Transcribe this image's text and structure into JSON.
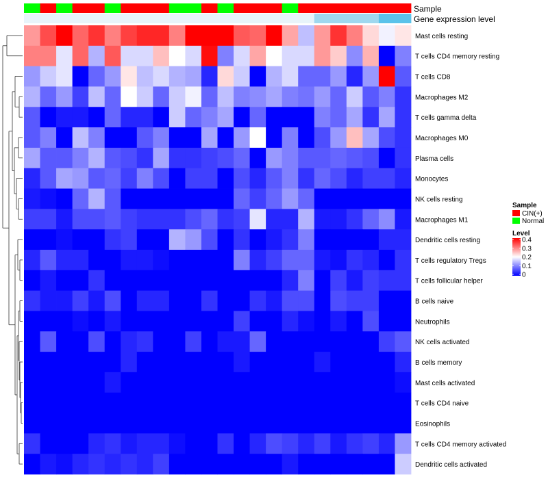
{
  "chart_data": {
    "type": "heatmap",
    "title": "",
    "annotation_tracks": [
      {
        "name": "Sample",
        "values": [
          "Normal",
          "CIN(+)",
          "Normal",
          "CIN(+)",
          "CIN(+)",
          "Normal",
          "CIN(+)",
          "CIN(+)",
          "CIN(+)",
          "Normal",
          "Normal",
          "CIN(+)",
          "Normal",
          "CIN(+)",
          "CIN(+)",
          "CIN(+)",
          "Normal",
          "CIN(+)",
          "CIN(+)",
          "CIN(+)",
          "CIN(+)",
          "CIN(+)",
          "CIN(+)",
          "CIN(+)"
        ]
      },
      {
        "name": "Gene expression level",
        "values": [
          "low",
          "low",
          "low",
          "low",
          "low",
          "low",
          "low",
          "low",
          "low",
          "low",
          "low",
          "low",
          "low",
          "low",
          "low",
          "low",
          "low",
          "low",
          "mid",
          "mid",
          "mid",
          "mid",
          "high",
          "high"
        ]
      }
    ],
    "rows": [
      "Mast cells resting",
      "T cells CD4 memory resting",
      "T cells CD8",
      "Macrophages M2",
      "T cells gamma delta",
      "Macrophages M0",
      "Plasma cells",
      "Monocytes",
      "NK cells resting",
      "Macrophages M1",
      "Dendritic cells resting",
      "T cells regulatory  Tregs",
      "T cells follicular helper",
      "B cells naive",
      "Neutrophils",
      "NK cells activated",
      "B cells memory",
      "Mast cells activated",
      "T cells CD4 naive",
      "Eosinophils",
      "T cells CD4 memory activated",
      "Dendritic cells activated"
    ],
    "values": [
      [
        0.28,
        0.34,
        0.4,
        0.32,
        0.36,
        0.3,
        0.35,
        0.37,
        0.37,
        0.3,
        0.4,
        0.4,
        0.4,
        0.33,
        0.32,
        0.4,
        0.27,
        0.15,
        0.28,
        0.36,
        0.3,
        0.23,
        0.19,
        0.22
      ],
      [
        0.3,
        0.3,
        0.18,
        0.32,
        0.14,
        0.33,
        0.17,
        0.17,
        0.25,
        0.2,
        0.17,
        0.39,
        0.1,
        0.17,
        0.27,
        0.2,
        0.17,
        0.17,
        0.28,
        0.24,
        0.11,
        0.26,
        0.0,
        0.1
      ],
      [
        0.12,
        0.16,
        0.18,
        0.0,
        0.08,
        0.12,
        0.22,
        0.15,
        0.17,
        0.14,
        0.13,
        0.03,
        0.23,
        0.16,
        0.0,
        0.14,
        0.17,
        0.08,
        0.08,
        0.12,
        0.03,
        0.12,
        0.4,
        0.07
      ],
      [
        0.14,
        0.08,
        0.12,
        0.05,
        0.15,
        0.08,
        0.2,
        0.16,
        0.08,
        0.16,
        0.19,
        0.08,
        0.15,
        0.1,
        0.11,
        0.13,
        0.1,
        0.09,
        0.12,
        0.08,
        0.16,
        0.07,
        0.1,
        0.04
      ],
      [
        0.07,
        0.0,
        0.02,
        0.02,
        0.0,
        0.08,
        0.03,
        0.03,
        0.0,
        0.16,
        0.08,
        0.1,
        0.13,
        0.0,
        0.08,
        0.0,
        0.0,
        0.0,
        0.1,
        0.08,
        0.13,
        0.04,
        0.13,
        0.04
      ],
      [
        0.07,
        0.1,
        0.0,
        0.15,
        0.1,
        0.0,
        0.0,
        0.07,
        0.1,
        0.0,
        0.0,
        0.13,
        0.0,
        0.12,
        0.2,
        0.0,
        0.1,
        0.0,
        0.06,
        0.12,
        0.25,
        0.13,
        0.06,
        0.04
      ],
      [
        0.13,
        0.07,
        0.07,
        0.1,
        0.14,
        0.07,
        0.06,
        0.04,
        0.13,
        0.04,
        0.04,
        0.05,
        0.06,
        0.08,
        0.0,
        0.12,
        0.1,
        0.07,
        0.07,
        0.08,
        0.07,
        0.06,
        0.0,
        0.04
      ],
      [
        0.03,
        0.07,
        0.13,
        0.12,
        0.07,
        0.08,
        0.05,
        0.1,
        0.06,
        0.0,
        0.05,
        0.05,
        0.0,
        0.06,
        0.03,
        0.07,
        0.1,
        0.04,
        0.08,
        0.06,
        0.03,
        0.05,
        0.05,
        0.03
      ],
      [
        0.02,
        0.01,
        0.0,
        0.08,
        0.14,
        0.07,
        0.0,
        0.0,
        0.0,
        0.0,
        0.0,
        0.0,
        0.0,
        0.08,
        0.05,
        0.08,
        0.12,
        0.08,
        0.0,
        0.0,
        0.0,
        0.0,
        0.0,
        0.0
      ],
      [
        0.05,
        0.05,
        0.02,
        0.06,
        0.06,
        0.07,
        0.05,
        0.04,
        0.04,
        0.04,
        0.06,
        0.08,
        0.04,
        0.05,
        0.18,
        0.03,
        0.03,
        0.14,
        0.02,
        0.02,
        0.04,
        0.08,
        0.11,
        0.02
      ],
      [
        0.0,
        0.0,
        0.01,
        0.0,
        0.0,
        0.04,
        0.05,
        0.0,
        0.0,
        0.14,
        0.12,
        0.06,
        0.0,
        0.04,
        0.0,
        0.02,
        0.04,
        0.1,
        0.0,
        0.0,
        0.0,
        0.0,
        0.03,
        0.03
      ],
      [
        0.03,
        0.07,
        0.03,
        0.03,
        0.0,
        0.0,
        0.02,
        0.02,
        0.01,
        0.0,
        0.0,
        0.0,
        0.0,
        0.1,
        0.03,
        0.05,
        0.08,
        0.08,
        0.02,
        0.01,
        0.04,
        0.03,
        0.0,
        0.04
      ],
      [
        0.0,
        0.02,
        0.0,
        0.0,
        0.04,
        0.0,
        0.0,
        0.0,
        0.0,
        0.0,
        0.0,
        0.0,
        0.0,
        0.0,
        0.0,
        0.0,
        0.03,
        0.1,
        0.0,
        0.05,
        0.02,
        0.05,
        0.04,
        0.04
      ],
      [
        0.04,
        0.02,
        0.02,
        0.05,
        0.02,
        0.06,
        0.0,
        0.03,
        0.03,
        0.0,
        0.0,
        0.04,
        0.0,
        0.0,
        0.04,
        0.02,
        0.06,
        0.06,
        0.0,
        0.06,
        0.05,
        0.05,
        0.0,
        0.0
      ],
      [
        0.0,
        0.0,
        0.0,
        0.01,
        0.0,
        0.02,
        0.0,
        0.0,
        0.0,
        0.0,
        0.0,
        0.0,
        0.0,
        0.05,
        0.0,
        0.0,
        0.03,
        0.01,
        0.0,
        0.02,
        0.0,
        0.06,
        0.0,
        0.0
      ],
      [
        0.0,
        0.07,
        0.0,
        0.0,
        0.06,
        0.0,
        0.03,
        0.04,
        0.0,
        0.0,
        0.05,
        0.0,
        0.02,
        0.02,
        0.08,
        0.0,
        0.0,
        0.0,
        0.0,
        0.0,
        0.0,
        0.0,
        0.05,
        0.07
      ],
      [
        0.0,
        0.0,
        0.0,
        0.0,
        0.0,
        0.0,
        0.03,
        0.0,
        0.0,
        0.0,
        0.0,
        0.0,
        0.0,
        0.02,
        0.0,
        0.0,
        0.0,
        0.0,
        0.02,
        0.0,
        0.0,
        0.0,
        0.0,
        0.03
      ],
      [
        0.0,
        0.0,
        0.0,
        0.0,
        0.0,
        0.02,
        0.0,
        0.0,
        0.0,
        0.0,
        0.0,
        0.0,
        0.0,
        0.0,
        0.0,
        0.0,
        0.0,
        0.0,
        0.0,
        0.0,
        0.0,
        0.0,
        0.0,
        0.01
      ],
      [
        0.0,
        0.0,
        0.0,
        0.0,
        0.0,
        0.0,
        0.0,
        0.0,
        0.0,
        0.0,
        0.0,
        0.0,
        0.0,
        0.0,
        0.0,
        0.0,
        0.0,
        0.0,
        0.0,
        0.0,
        0.0,
        0.0,
        0.0,
        0.0
      ],
      [
        0.0,
        0.0,
        0.0,
        0.0,
        0.0,
        0.0,
        0.0,
        0.0,
        0.0,
        0.0,
        0.0,
        0.0,
        0.0,
        0.0,
        0.0,
        0.0,
        0.0,
        0.0,
        0.0,
        0.0,
        0.0,
        0.0,
        0.0,
        0.0
      ],
      [
        0.04,
        0.0,
        0.0,
        0.0,
        0.03,
        0.04,
        0.02,
        0.03,
        0.03,
        0.01,
        0.0,
        0.0,
        0.04,
        0.0,
        0.03,
        0.06,
        0.05,
        0.03,
        0.05,
        0.02,
        0.04,
        0.05,
        0.03,
        0.12
      ],
      [
        0.0,
        0.02,
        0.01,
        0.03,
        0.04,
        0.03,
        0.04,
        0.03,
        0.05,
        0.0,
        0.0,
        0.0,
        0.0,
        0.0,
        0.0,
        0.0,
        0.02,
        0.0,
        0.0,
        0.0,
        0.0,
        0.0,
        0.0,
        0.16
      ]
    ],
    "color_scale": {
      "min": 0,
      "max": 0.4,
      "low_color": "#0000ff",
      "mid_color": "#ffffff",
      "high_color": "#ff0000",
      "mid_value": 0.2
    },
    "legend": {
      "sample_title": "Sample",
      "sample_entries": [
        {
          "label": "CIN(+)",
          "color": "#ff0000"
        },
        {
          "label": "Normal",
          "color": "#00ff00"
        }
      ],
      "level_title": "Level",
      "level_ticks": [
        "0.4",
        "0.3",
        "0.2",
        "0.1",
        "0"
      ],
      "position": "right"
    },
    "expression_track_colors": {
      "low": "#e8f4fa",
      "mid": "#9fd8ef",
      "high": "#5bc3ea"
    },
    "row_dendrogram": true
  }
}
